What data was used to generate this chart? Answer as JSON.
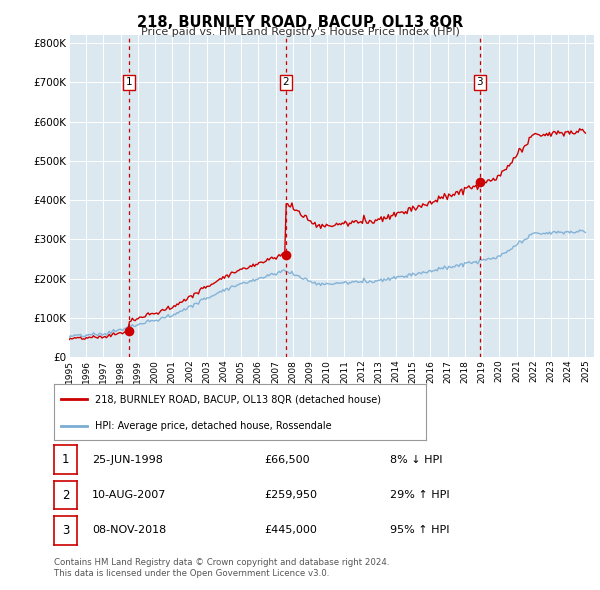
{
  "title": "218, BURNLEY ROAD, BACUP, OL13 8QR",
  "subtitle": "Price paid vs. HM Land Registry's House Price Index (HPI)",
  "xlim": [
    1995.0,
    2025.5
  ],
  "ylim": [
    0,
    820000
  ],
  "yticks": [
    0,
    100000,
    200000,
    300000,
    400000,
    500000,
    600000,
    700000,
    800000
  ],
  "ytick_labels": [
    "£0",
    "£100K",
    "£200K",
    "£300K",
    "£400K",
    "£500K",
    "£600K",
    "£700K",
    "£800K"
  ],
  "xtick_years": [
    1995,
    1996,
    1997,
    1998,
    1999,
    2000,
    2001,
    2002,
    2003,
    2004,
    2005,
    2006,
    2007,
    2008,
    2009,
    2010,
    2011,
    2012,
    2013,
    2014,
    2015,
    2016,
    2017,
    2018,
    2019,
    2020,
    2021,
    2022,
    2023,
    2024,
    2025
  ],
  "sale_color": "#cc0000",
  "hpi_color": "#7aadd4",
  "background_color": "#ffffff",
  "plot_bg_color": "#dce8f0",
  "grid_color": "#ffffff",
  "sale_points": [
    {
      "date": 1998.49,
      "price": 66500,
      "label": "1"
    },
    {
      "date": 2007.61,
      "price": 259950,
      "label": "2"
    },
    {
      "date": 2018.86,
      "price": 445000,
      "label": "3"
    }
  ],
  "vline_dates": [
    1998.49,
    2007.61,
    2018.86
  ],
  "legend_sale_label": "218, BURNLEY ROAD, BACUP, OL13 8QR (detached house)",
  "legend_hpi_label": "HPI: Average price, detached house, Rossendale",
  "table_rows": [
    {
      "num": "1",
      "date": "25-JUN-1998",
      "price": "£66,500",
      "hpi": "8% ↓ HPI"
    },
    {
      "num": "2",
      "date": "10-AUG-2007",
      "price": "£259,950",
      "hpi": "29% ↑ HPI"
    },
    {
      "num": "3",
      "date": "08-NOV-2018",
      "price": "£445,000",
      "hpi": "95% ↑ HPI"
    }
  ],
  "footer": "Contains HM Land Registry data © Crown copyright and database right 2024.\nThis data is licensed under the Open Government Licence v3.0."
}
